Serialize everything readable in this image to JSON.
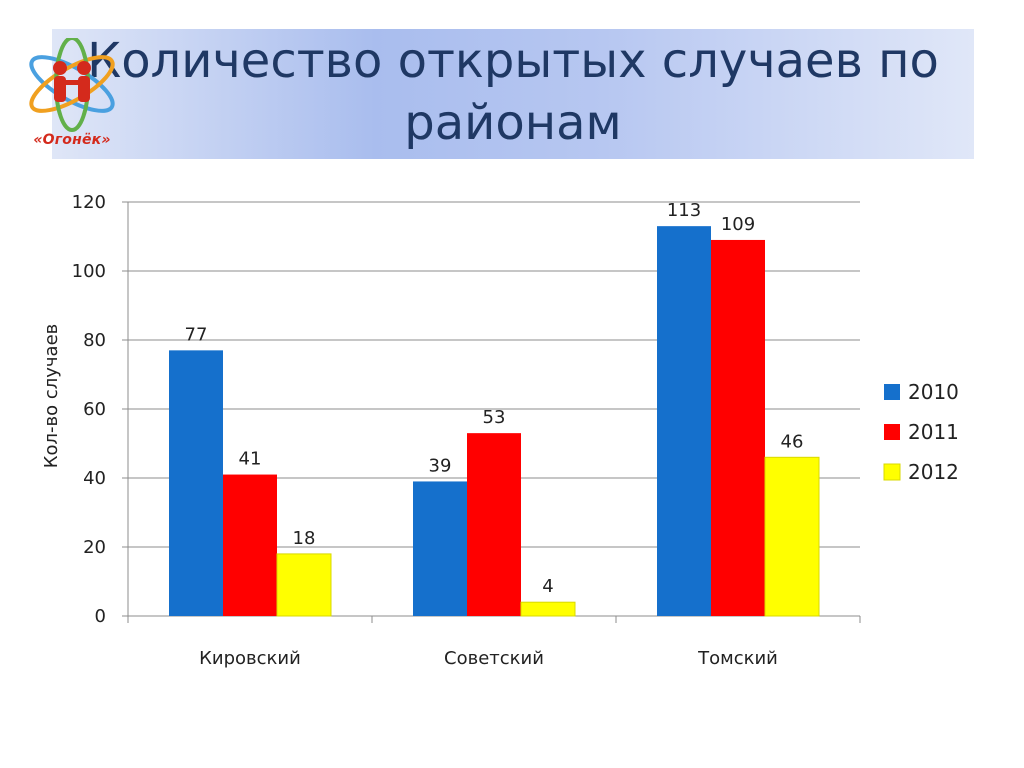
{
  "title": "Количество открытых случаев по районам",
  "logo": {
    "text": "«Огонёк»",
    "icon": "ogonek-logo-atom-children"
  },
  "chart_data": {
    "type": "bar",
    "ylabel": "Кол-во  случаев",
    "xlabel": "",
    "categories": [
      "Кировский",
      "Советский",
      "Томский"
    ],
    "series": [
      {
        "name": "2010",
        "color": "#1570cc",
        "values": [
          77,
          39,
          113
        ]
      },
      {
        "name": "2011",
        "color": "#ff0000",
        "values": [
          41,
          53,
          109
        ]
      },
      {
        "name": "2012",
        "color": "#ffff00",
        "values": [
          18,
          4,
          46
        ]
      }
    ],
    "ylim": [
      0,
      120
    ],
    "yticks": [
      0,
      20,
      40,
      60,
      80,
      100,
      120
    ],
    "grid": true,
    "legend": "right"
  }
}
